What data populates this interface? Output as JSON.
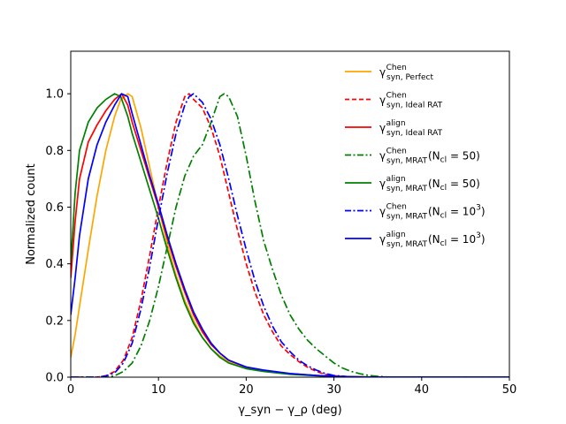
{
  "chart_data": {
    "type": "line",
    "title": "",
    "xlabel": "γ_syn − γ_ρ (deg)",
    "ylabel": "Normalized count",
    "xlim": [
      0,
      50
    ],
    "ylim": [
      0,
      1.15
    ],
    "xticks": [
      0,
      10,
      20,
      30,
      40,
      50
    ],
    "yticks": [
      0.0,
      0.2,
      0.4,
      0.6,
      0.8,
      1.0
    ],
    "xtick_labels": [
      "0",
      "10",
      "20",
      "30",
      "40",
      "50"
    ],
    "ytick_labels": [
      "0.0",
      "0.2",
      "0.4",
      "0.6",
      "0.8",
      "1.0"
    ],
    "legend_position": "top-right",
    "series": [
      {
        "name": "γ syn,Perfect (Chen)",
        "legend": {
          "base": "γ",
          "sup": "Chen",
          "sub": "syn, Perfect",
          "suffix": ""
        },
        "color": "#ffa500",
        "dash": "solid",
        "points": [
          [
            0,
            0.07
          ],
          [
            0.5,
            0.15
          ],
          [
            1,
            0.25
          ],
          [
            2,
            0.45
          ],
          [
            3,
            0.64
          ],
          [
            4,
            0.8
          ],
          [
            5,
            0.92
          ],
          [
            5.7,
            0.98
          ],
          [
            6.5,
            1.0
          ],
          [
            7,
            0.99
          ],
          [
            8,
            0.88
          ],
          [
            9,
            0.74
          ],
          [
            10,
            0.6
          ],
          [
            11,
            0.47
          ],
          [
            12,
            0.36
          ],
          [
            13,
            0.27
          ],
          [
            14,
            0.2
          ],
          [
            15,
            0.14
          ],
          [
            16,
            0.1
          ],
          [
            17,
            0.075
          ],
          [
            18,
            0.055
          ],
          [
            20,
            0.035
          ],
          [
            22,
            0.024
          ],
          [
            25,
            0.012
          ],
          [
            28,
            0.006
          ],
          [
            30,
            0.003
          ],
          [
            33,
            0.001
          ],
          [
            36,
            0
          ],
          [
            50,
            0
          ]
        ]
      },
      {
        "name": "γ syn,Ideal RAT (Chen)",
        "legend": {
          "base": "γ",
          "sup": "Chen",
          "sub": "syn, Ideal RAT",
          "suffix": ""
        },
        "color": "#ff0000",
        "dash": "dashed",
        "points": [
          [
            0,
            0
          ],
          [
            3,
            0
          ],
          [
            4,
            0.005
          ],
          [
            5,
            0.02
          ],
          [
            6,
            0.06
          ],
          [
            7,
            0.14
          ],
          [
            8,
            0.27
          ],
          [
            9,
            0.43
          ],
          [
            10,
            0.6
          ],
          [
            11,
            0.76
          ],
          [
            12,
            0.9
          ],
          [
            13,
            0.99
          ],
          [
            13.5,
            1.0
          ],
          [
            14,
            0.98
          ],
          [
            15,
            0.95
          ],
          [
            16,
            0.88
          ],
          [
            17,
            0.78
          ],
          [
            18,
            0.65
          ],
          [
            19,
            0.52
          ],
          [
            20,
            0.4
          ],
          [
            21,
            0.3
          ],
          [
            22,
            0.22
          ],
          [
            23,
            0.16
          ],
          [
            24,
            0.11
          ],
          [
            25,
            0.08
          ],
          [
            26,
            0.055
          ],
          [
            27,
            0.035
          ],
          [
            28,
            0.02
          ],
          [
            29,
            0.01
          ],
          [
            30,
            0.005
          ],
          [
            32,
            0.001
          ],
          [
            35,
            0
          ],
          [
            50,
            0
          ]
        ]
      },
      {
        "name": "γ syn,Ideal RAT (align)",
        "legend": {
          "base": "γ",
          "sup": "align",
          "sub": "syn, Ideal RAT",
          "suffix": ""
        },
        "color": "#ff0000",
        "dash": "solid",
        "points": [
          [
            0,
            0.35
          ],
          [
            0.5,
            0.55
          ],
          [
            1,
            0.7
          ],
          [
            2,
            0.83
          ],
          [
            3,
            0.89
          ],
          [
            4,
            0.94
          ],
          [
            5,
            0.98
          ],
          [
            5.8,
            1.0
          ],
          [
            6.5,
            0.96
          ],
          [
            7,
            0.9
          ],
          [
            8,
            0.8
          ],
          [
            9,
            0.7
          ],
          [
            10,
            0.6
          ],
          [
            11,
            0.49
          ],
          [
            12,
            0.39
          ],
          [
            13,
            0.3
          ],
          [
            14,
            0.22
          ],
          [
            15,
            0.16
          ],
          [
            16,
            0.115
          ],
          [
            17,
            0.085
          ],
          [
            18,
            0.06
          ],
          [
            20,
            0.035
          ],
          [
            22,
            0.024
          ],
          [
            25,
            0.012
          ],
          [
            28,
            0.006
          ],
          [
            30,
            0.003
          ],
          [
            33,
            0.001
          ],
          [
            36,
            0
          ],
          [
            50,
            0
          ]
        ]
      },
      {
        "name": "γ syn,MRAT (Chen), N_cl = 50",
        "legend": {
          "base": "γ",
          "sup": "Chen",
          "sub": "syn, MRAT",
          "suffix": " (N",
          "suffix_sub": "cl",
          "suffix_end": " = 50)",
          "suffix_sup": ""
        },
        "color": "#008000",
        "dash": "dashdot",
        "points": [
          [
            0,
            0
          ],
          [
            4,
            0
          ],
          [
            5,
            0.005
          ],
          [
            6,
            0.02
          ],
          [
            7,
            0.05
          ],
          [
            8,
            0.11
          ],
          [
            9,
            0.2
          ],
          [
            10,
            0.32
          ],
          [
            11,
            0.46
          ],
          [
            12,
            0.6
          ],
          [
            13,
            0.71
          ],
          [
            14,
            0.78
          ],
          [
            15,
            0.82
          ],
          [
            16,
            0.9
          ],
          [
            17,
            0.99
          ],
          [
            17.5,
            1.0
          ],
          [
            18,
            0.99
          ],
          [
            19,
            0.92
          ],
          [
            20,
            0.78
          ],
          [
            21,
            0.62
          ],
          [
            22,
            0.48
          ],
          [
            23,
            0.38
          ],
          [
            24,
            0.29
          ],
          [
            25,
            0.22
          ],
          [
            26,
            0.17
          ],
          [
            27,
            0.13
          ],
          [
            28,
            0.1
          ],
          [
            29,
            0.075
          ],
          [
            30,
            0.05
          ],
          [
            31,
            0.032
          ],
          [
            32,
            0.02
          ],
          [
            33,
            0.012
          ],
          [
            34,
            0.006
          ],
          [
            35,
            0.003
          ],
          [
            36,
            0.001
          ],
          [
            38,
            0
          ],
          [
            50,
            0
          ]
        ]
      },
      {
        "name": "γ syn,MRAT (align), N_cl = 50",
        "legend": {
          "base": "γ",
          "sup": "align",
          "sub": "syn, MRAT",
          "suffix": " (N",
          "suffix_sub": "cl",
          "suffix_end": " = 50)",
          "suffix_sup": ""
        },
        "color": "#008000",
        "dash": "solid",
        "points": [
          [
            0,
            0.4
          ],
          [
            0.5,
            0.65
          ],
          [
            1,
            0.8
          ],
          [
            2,
            0.9
          ],
          [
            3,
            0.95
          ],
          [
            4,
            0.98
          ],
          [
            5,
            1.0
          ],
          [
            5.7,
            0.99
          ],
          [
            6.5,
            0.92
          ],
          [
            7,
            0.86
          ],
          [
            8,
            0.76
          ],
          [
            9,
            0.66
          ],
          [
            10,
            0.56
          ],
          [
            11,
            0.45
          ],
          [
            12,
            0.35
          ],
          [
            13,
            0.26
          ],
          [
            14,
            0.19
          ],
          [
            15,
            0.14
          ],
          [
            16,
            0.1
          ],
          [
            17,
            0.07
          ],
          [
            18,
            0.05
          ],
          [
            20,
            0.03
          ],
          [
            22,
            0.02
          ],
          [
            25,
            0.01
          ],
          [
            28,
            0.005
          ],
          [
            30,
            0.002
          ],
          [
            33,
            0.001
          ],
          [
            36,
            0
          ],
          [
            50,
            0
          ]
        ]
      },
      {
        "name": "γ syn,MRAT (Chen), N_cl = 10^3",
        "legend": {
          "base": "γ",
          "sup": "Chen",
          "sub": "syn, MRAT",
          "suffix": " (N",
          "suffix_sub": "cl",
          "suffix_end": " = 10",
          "suffix_sup": "3",
          "suffix_close": ")"
        },
        "color": "#0000ff",
        "dash": "dashdot",
        "points": [
          [
            0,
            0
          ],
          [
            3,
            0
          ],
          [
            4,
            0.004
          ],
          [
            5,
            0.015
          ],
          [
            6,
            0.05
          ],
          [
            7,
            0.12
          ],
          [
            8,
            0.24
          ],
          [
            9,
            0.39
          ],
          [
            10,
            0.56
          ],
          [
            11,
            0.72
          ],
          [
            12,
            0.86
          ],
          [
            13,
            0.96
          ],
          [
            13.5,
            0.99
          ],
          [
            14,
            1.0
          ],
          [
            15,
            0.97
          ],
          [
            16,
            0.91
          ],
          [
            17,
            0.82
          ],
          [
            18,
            0.7
          ],
          [
            19,
            0.57
          ],
          [
            20,
            0.45
          ],
          [
            21,
            0.34
          ],
          [
            22,
            0.25
          ],
          [
            23,
            0.18
          ],
          [
            24,
            0.125
          ],
          [
            25,
            0.09
          ],
          [
            26,
            0.06
          ],
          [
            27,
            0.04
          ],
          [
            28,
            0.025
          ],
          [
            29,
            0.013
          ],
          [
            30,
            0.006
          ],
          [
            32,
            0.001
          ],
          [
            35,
            0
          ],
          [
            50,
            0
          ]
        ]
      },
      {
        "name": "γ syn,MRAT (align), N_cl = 10^3",
        "legend": {
          "base": "γ",
          "sup": "align",
          "sub": "syn, MRAT",
          "suffix": " (N",
          "suffix_sub": "cl",
          "suffix_end": " = 10",
          "suffix_sup": "3",
          "suffix_close": ")"
        },
        "color": "#0000ff",
        "dash": "solid",
        "points": [
          [
            0,
            0.22
          ],
          [
            0.5,
            0.35
          ],
          [
            1,
            0.5
          ],
          [
            2,
            0.7
          ],
          [
            3,
            0.82
          ],
          [
            4,
            0.9
          ],
          [
            5,
            0.96
          ],
          [
            5.8,
            1.0
          ],
          [
            6.5,
            0.99
          ],
          [
            7,
            0.93
          ],
          [
            8,
            0.82
          ],
          [
            9,
            0.71
          ],
          [
            10,
            0.61
          ],
          [
            11,
            0.5
          ],
          [
            12,
            0.4
          ],
          [
            13,
            0.31
          ],
          [
            14,
            0.23
          ],
          [
            15,
            0.17
          ],
          [
            16,
            0.12
          ],
          [
            17,
            0.085
          ],
          [
            18,
            0.06
          ],
          [
            20,
            0.036
          ],
          [
            22,
            0.025
          ],
          [
            25,
            0.013
          ],
          [
            28,
            0.006
          ],
          [
            30,
            0.003
          ],
          [
            33,
            0.001
          ],
          [
            36,
            0
          ],
          [
            50,
            0
          ]
        ]
      }
    ]
  }
}
